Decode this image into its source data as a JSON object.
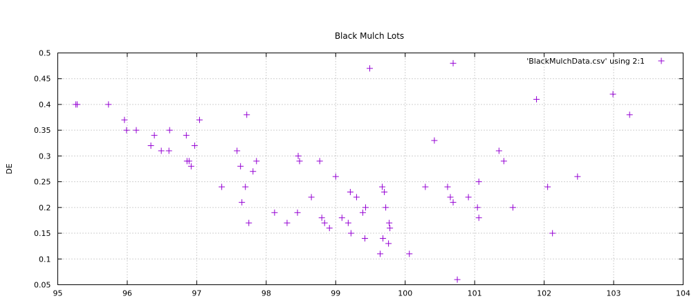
{
  "chart_data": {
    "type": "scatter",
    "title": "Black Mulch Lots",
    "xlabel": "",
    "ylabel": "DE",
    "xlim": [
      95,
      104
    ],
    "ylim": [
      0.05,
      0.5
    ],
    "x_ticks": [
      95,
      96,
      97,
      98,
      99,
      100,
      101,
      102,
      103,
      104
    ],
    "y_ticks": [
      0.05,
      0.1,
      0.15,
      0.2,
      0.25,
      0.3,
      0.35,
      0.4,
      0.45,
      0.5
    ],
    "grid": true,
    "legend_position": "top-right",
    "marker": "plus",
    "series": [
      {
        "name": "'BlackMulchData.csv' using 2:1",
        "color": "#9400d3",
        "points": [
          [
            95.26,
            0.4
          ],
          [
            95.28,
            0.4
          ],
          [
            95.73,
            0.4
          ],
          [
            95.96,
            0.37
          ],
          [
            95.99,
            0.35
          ],
          [
            96.13,
            0.35
          ],
          [
            96.34,
            0.32
          ],
          [
            96.39,
            0.34
          ],
          [
            96.49,
            0.31
          ],
          [
            96.6,
            0.31
          ],
          [
            96.61,
            0.35
          ],
          [
            96.85,
            0.34
          ],
          [
            96.86,
            0.29
          ],
          [
            96.89,
            0.29
          ],
          [
            96.92,
            0.28
          ],
          [
            96.97,
            0.32
          ],
          [
            97.04,
            0.37
          ],
          [
            97.36,
            0.24
          ],
          [
            97.58,
            0.31
          ],
          [
            97.63,
            0.28
          ],
          [
            97.65,
            0.21
          ],
          [
            97.7,
            0.24
          ],
          [
            97.72,
            0.38
          ],
          [
            97.75,
            0.17
          ],
          [
            97.81,
            0.27
          ],
          [
            97.86,
            0.29
          ],
          [
            98.12,
            0.19
          ],
          [
            98.3,
            0.17
          ],
          [
            98.45,
            0.19
          ],
          [
            98.46,
            0.3
          ],
          [
            98.48,
            0.29
          ],
          [
            98.65,
            0.22
          ],
          [
            98.77,
            0.29
          ],
          [
            98.8,
            0.18
          ],
          [
            98.84,
            0.17
          ],
          [
            98.91,
            0.16
          ],
          [
            99.0,
            0.26
          ],
          [
            99.09,
            0.18
          ],
          [
            99.18,
            0.17
          ],
          [
            99.21,
            0.23
          ],
          [
            99.22,
            0.15
          ],
          [
            99.3,
            0.22
          ],
          [
            99.39,
            0.19
          ],
          [
            99.42,
            0.14
          ],
          [
            99.43,
            0.2
          ],
          [
            99.49,
            0.47
          ],
          [
            99.64,
            0.11
          ],
          [
            99.67,
            0.24
          ],
          [
            99.68,
            0.14
          ],
          [
            99.7,
            0.23
          ],
          [
            99.72,
            0.2
          ],
          [
            99.76,
            0.13
          ],
          [
            99.77,
            0.17
          ],
          [
            99.78,
            0.16
          ],
          [
            100.06,
            0.11
          ],
          [
            100.29,
            0.24
          ],
          [
            100.42,
            0.33
          ],
          [
            100.61,
            0.24
          ],
          [
            100.65,
            0.22
          ],
          [
            100.69,
            0.48
          ],
          [
            100.69,
            0.21
          ],
          [
            100.75,
            0.06
          ],
          [
            100.91,
            0.22
          ],
          [
            101.04,
            0.2
          ],
          [
            101.06,
            0.25
          ],
          [
            101.06,
            0.18
          ],
          [
            101.35,
            0.31
          ],
          [
            101.42,
            0.29
          ],
          [
            101.55,
            0.2
          ],
          [
            101.89,
            0.41
          ],
          [
            102.05,
            0.24
          ],
          [
            102.12,
            0.15
          ],
          [
            102.48,
            0.26
          ],
          [
            102.99,
            0.42
          ],
          [
            103.23,
            0.38
          ]
        ]
      }
    ]
  }
}
